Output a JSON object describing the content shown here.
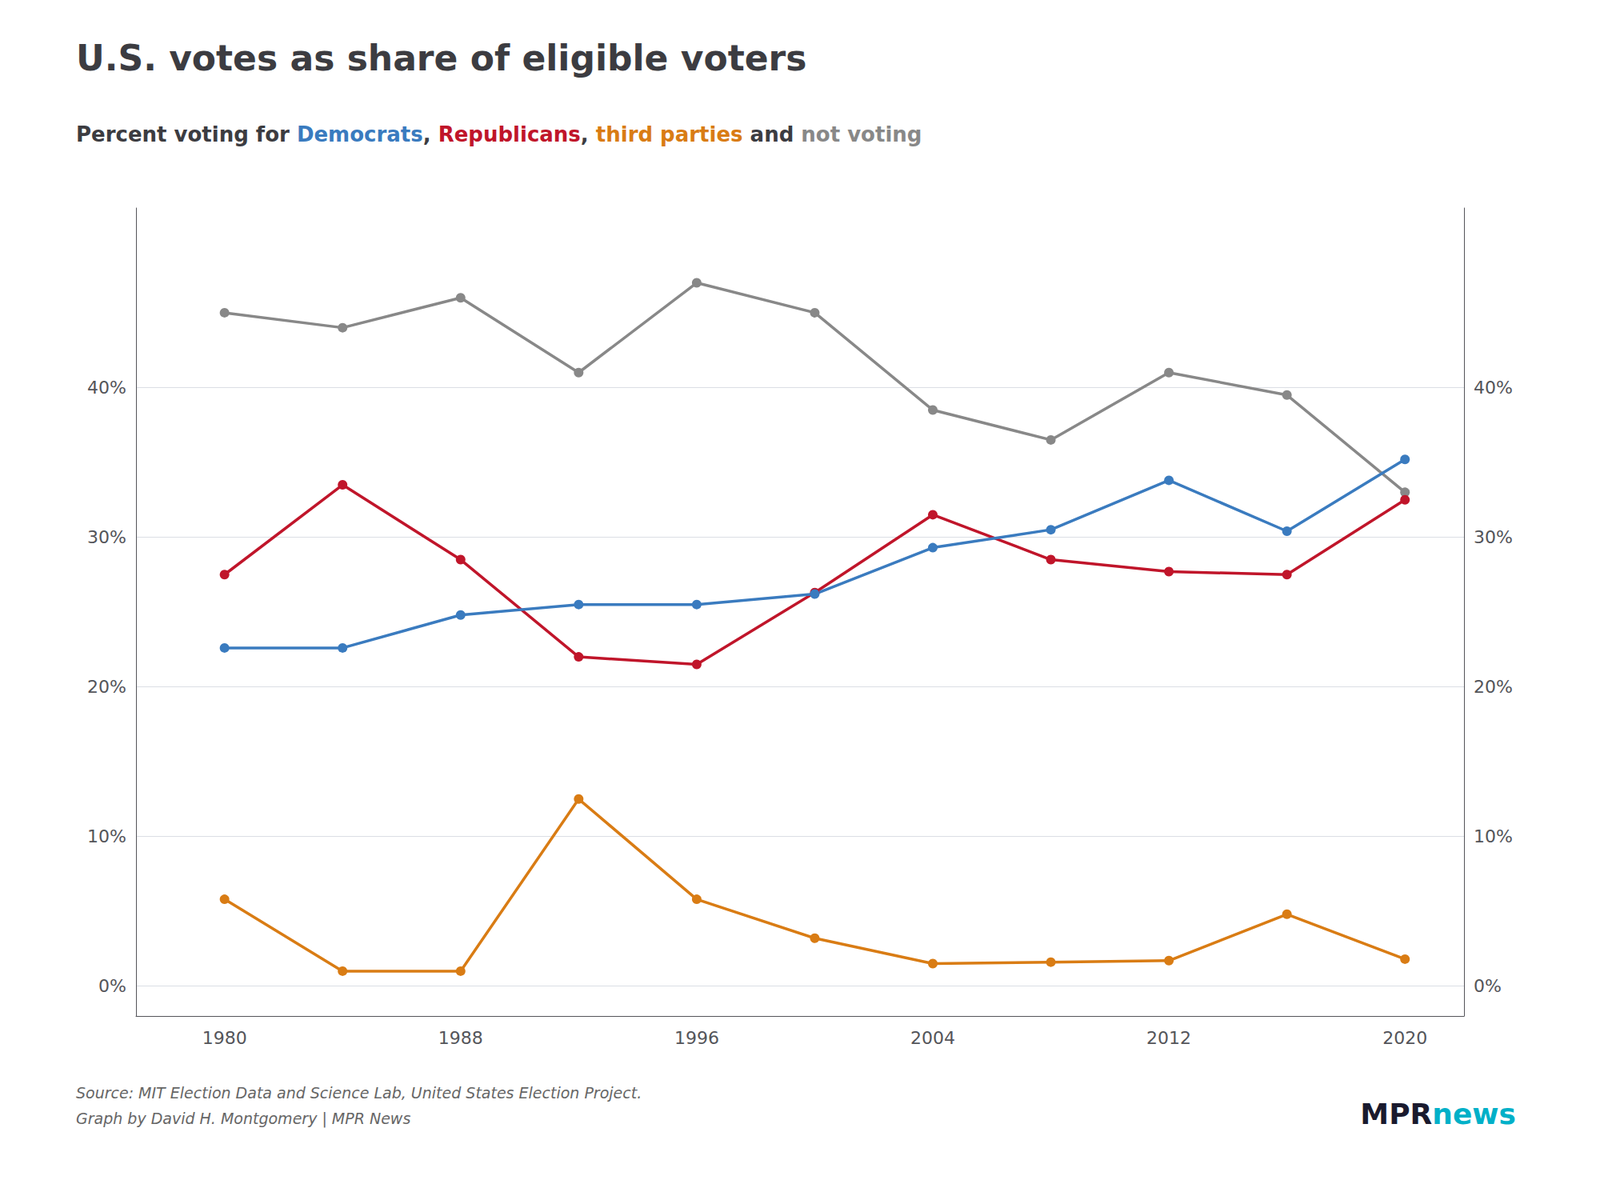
{
  "chart_data": {
    "type": "line",
    "title": "U.S. votes as share of eligible voters",
    "subtitle": "Percent voting for Democrats, Republicans, third parties and not voting",
    "x": [
      1980,
      1984,
      1988,
      1992,
      1996,
      2000,
      2004,
      2008,
      2012,
      2016,
      2020
    ],
    "series": [
      {
        "name": "not voting",
        "color": "#888888",
        "values": [
          45.0,
          44.0,
          46.0,
          41.0,
          47.0,
          45.0,
          38.5,
          36.5,
          41.0,
          39.5,
          33.0
        ]
      },
      {
        "name": "Republicans",
        "color": "#c0152a",
        "values": [
          27.5,
          33.5,
          28.5,
          22.0,
          21.5,
          26.3,
          31.5,
          28.5,
          27.7,
          27.5,
          32.5
        ]
      },
      {
        "name": "Democrats",
        "color": "#3a7bbf",
        "values": [
          22.6,
          22.6,
          24.8,
          25.5,
          25.5,
          26.2,
          29.3,
          30.5,
          33.8,
          30.4,
          35.2
        ]
      },
      {
        "name": "third parties",
        "color": "#d97c14",
        "values": [
          5.8,
          1.0,
          1.0,
          12.5,
          5.8,
          3.2,
          1.5,
          1.6,
          1.7,
          4.8,
          1.8
        ]
      }
    ],
    "xlim": [
      1977,
      2022
    ],
    "xticks": [
      1980,
      1988,
      1996,
      2004,
      2012,
      2020
    ],
    "ylim": [
      -2,
      52
    ],
    "yticks": [
      {
        "value": 0,
        "label": "0%"
      },
      {
        "value": 10,
        "label": "10%"
      },
      {
        "value": 20,
        "label": "20%"
      },
      {
        "value": 30,
        "label": "30%"
      },
      {
        "value": 40,
        "label": "40%"
      }
    ],
    "y2lim": [
      -2,
      52
    ],
    "y2ticks": [
      {
        "value": 0,
        "label": "0%"
      },
      {
        "value": 10,
        "label": "10%"
      },
      {
        "value": 20,
        "label": "20%"
      },
      {
        "value": 30,
        "label": "30%"
      },
      {
        "value": 40,
        "label": "40%"
      }
    ],
    "grid": true,
    "marker": "circle",
    "annotations": [
      {
        "text": "Source: MIT Election Data and Science Lab, United States Election Project.",
        "color": "#666666"
      },
      {
        "text": "Graph by David H. Montgomery | MPR News",
        "color": "#666666"
      },
      {
        "text": "MPR",
        "color": "#1a1a2e"
      },
      {
        "text": "news",
        "color": "#00b0c8"
      }
    ]
  }
}
